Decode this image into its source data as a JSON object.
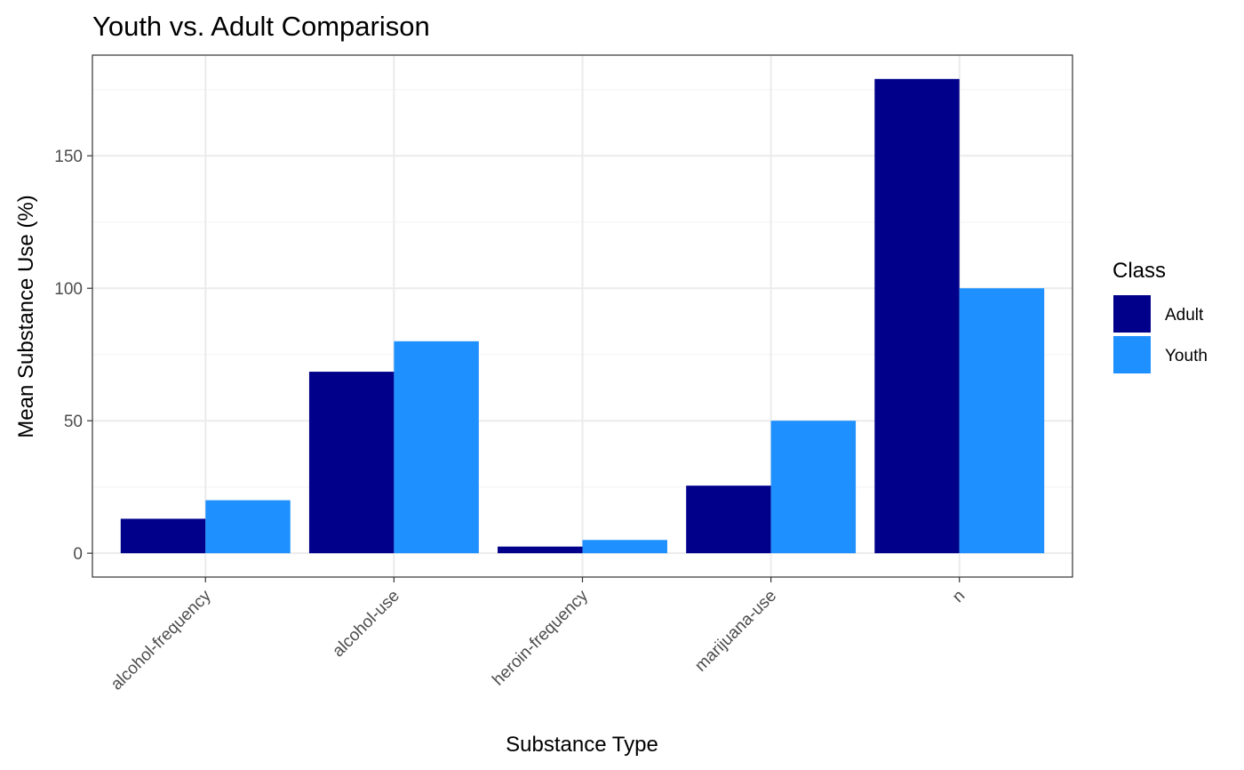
{
  "chart_data": {
    "type": "bar",
    "title": "Youth vs. Adult Comparison",
    "xlabel": "Substance Type",
    "ylabel": "Mean Substance Use (%)",
    "categories": [
      "alcohol-frequency",
      "alcohol-use",
      "heroin-frequency",
      "marijuana-use",
      "n"
    ],
    "series": [
      {
        "name": "Adult",
        "color": "#00008B",
        "values": [
          13,
          68.5,
          2.5,
          25.5,
          179
        ]
      },
      {
        "name": "Youth",
        "color": "#1E90FF",
        "values": [
          20,
          80,
          5,
          50,
          100
        ]
      }
    ],
    "ylim": [
      -9,
      188
    ],
    "y_ticks": [
      0,
      50,
      100,
      150
    ],
    "y_minor_ticks": [
      25,
      75,
      125,
      175
    ],
    "grid": true,
    "legend": {
      "title": "Class",
      "position": "right"
    }
  }
}
